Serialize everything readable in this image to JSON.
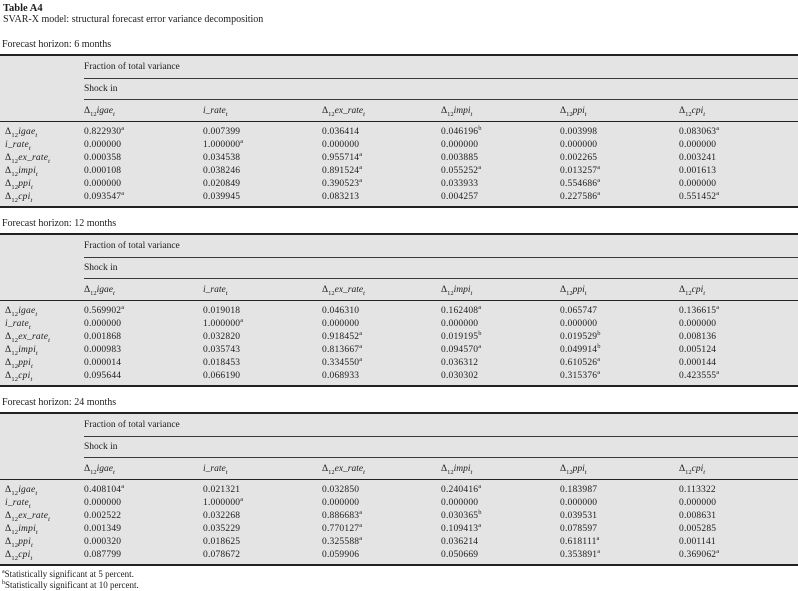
{
  "title": "Table A4",
  "subtitle": "SVAR-X model: structural forecast error variance decomposition",
  "headers": {
    "fraction": "Fraction of total variance",
    "shock": "Shock in"
  },
  "variables": [
    {
      "delta": true,
      "sub": "12",
      "name": "igae",
      "tsub": "t"
    },
    {
      "delta": false,
      "sub": "",
      "name": "i_rate",
      "tsub": "t"
    },
    {
      "delta": true,
      "sub": "12",
      "name": "ex_rate",
      "tsub": "t"
    },
    {
      "delta": true,
      "sub": "12",
      "name": "impi",
      "tsub": "t"
    },
    {
      "delta": true,
      "sub": "12",
      "name": "ppi",
      "tsub": "t"
    },
    {
      "delta": true,
      "sub": "12",
      "name": "cpi",
      "tsub": "t"
    }
  ],
  "tables": [
    {
      "horizon_label": "Forecast horizon: 6 months",
      "rows": [
        {
          "values": [
            "0.822930^a",
            "0.007399",
            "0.036414",
            "0.046196^b",
            "0.003998",
            "0.083063^a"
          ]
        },
        {
          "values": [
            "0.000000",
            "1.000000^a",
            "0.000000",
            "0.000000",
            "0.000000",
            "0.000000"
          ]
        },
        {
          "values": [
            "0.000358",
            "0.034538",
            "0.955714^a",
            "0.003885",
            "0.002265",
            "0.003241"
          ]
        },
        {
          "values": [
            "0.000108",
            "0.038246",
            "0.891524^a",
            "0.055252^a",
            "0.013257^a",
            "0.001613"
          ]
        },
        {
          "values": [
            "0.000000",
            "0.020849",
            "0.390523^a",
            "0.033933",
            "0.554686^a",
            "0.000000"
          ]
        },
        {
          "values": [
            "0.093547^a",
            "0.039945",
            "0.083213",
            "0.004257",
            "0.227586^a",
            "0.551452^a"
          ]
        }
      ]
    },
    {
      "horizon_label": "Forecast horizon: 12 months",
      "rows": [
        {
          "values": [
            "0.569902^a",
            "0.019018",
            "0.046310",
            "0.162408^a",
            "0.065747",
            "0.136615^a"
          ]
        },
        {
          "values": [
            "0.000000",
            "1.000000^a",
            "0.000000",
            "0.000000",
            "0.000000",
            "0.000000"
          ]
        },
        {
          "values": [
            "0.001868",
            "0.032820",
            "0.918452^a",
            "0.019195^b",
            "0.019529^b",
            "0.008136"
          ]
        },
        {
          "values": [
            "0.000983",
            "0.035743",
            "0.813667^a",
            "0.094570^a",
            "0.049914^b",
            "0.005124"
          ]
        },
        {
          "values": [
            "0.000014",
            "0.018453",
            "0.334550^a",
            "0.036312",
            "0.610526^a",
            "0.000144"
          ]
        },
        {
          "values": [
            "0.095644",
            "0.066190",
            "0.068933",
            "0.030302",
            "0.315376^a",
            "0.423555^a"
          ]
        }
      ]
    },
    {
      "horizon_label": "Forecast horizon: 24 months",
      "rows": [
        {
          "values": [
            "0.408104^a",
            "0.021321",
            "0.032850",
            "0.240416^a",
            "0.183987",
            "0.113322"
          ]
        },
        {
          "values": [
            "0.000000",
            "1.000000^a",
            "0.000000",
            "0.000000",
            "0.000000",
            "0.000000"
          ]
        },
        {
          "values": [
            "0.002522",
            "0.032268",
            "0.886683^a",
            "0.030365^b",
            "0.039531",
            "0.008631"
          ]
        },
        {
          "values": [
            "0.001349",
            "0.035229",
            "0.770127^a",
            "0.109413^a",
            "0.078597",
            "0.005285"
          ]
        },
        {
          "values": [
            "0.000320",
            "0.018625",
            "0.325588^a",
            "0.036214",
            "0.618111^a",
            "0.001141"
          ]
        },
        {
          "values": [
            "0.087799",
            "0.078672",
            "0.059906",
            "0.050669",
            "0.353891^a",
            "0.369062^a"
          ]
        }
      ]
    }
  ],
  "footnotes": [
    {
      "marker": "a",
      "text": "Statistically significant at 5 percent."
    },
    {
      "marker": "b",
      "text": "Statistically significant at 10 percent."
    }
  ],
  "colors": {
    "table_background": "#e4e4e4",
    "rule": "#222222",
    "text": "#1c1c1c"
  }
}
